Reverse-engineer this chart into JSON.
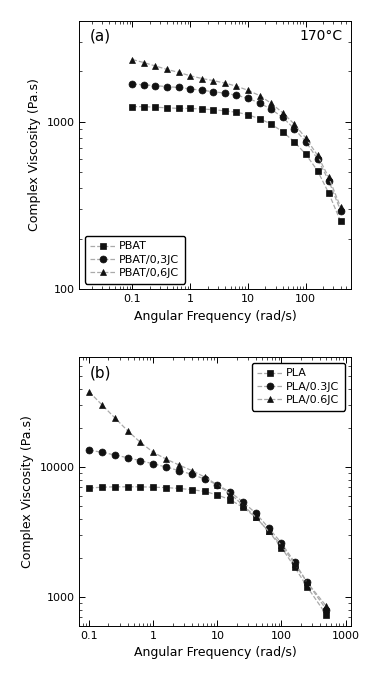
{
  "panel_a": {
    "label": "(a)",
    "annotation": "170°C",
    "xlabel": "Angular Frequency (rad/s)",
    "ylabel": "Complex Viscosity (Pa.s)",
    "xlim": [
      0.012,
      600
    ],
    "ylim": [
      100,
      4000
    ],
    "legend_loc": "lower left",
    "series": [
      {
        "label": "PBAT",
        "marker": "s",
        "x": [
          0.1,
          0.16,
          0.25,
          0.4,
          0.63,
          1.0,
          1.6,
          2.5,
          4.0,
          6.3,
          10,
          16,
          25,
          40,
          63,
          100,
          160,
          250,
          400
        ],
        "y": [
          1230,
          1230,
          1220,
          1210,
          1200,
          1200,
          1190,
          1180,
          1160,
          1140,
          1100,
          1040,
          970,
          870,
          760,
          640,
          510,
          375,
          255
        ]
      },
      {
        "label": "PBAT/0,3JC",
        "marker": "o",
        "x": [
          0.1,
          0.16,
          0.25,
          0.4,
          0.63,
          1.0,
          1.6,
          2.5,
          4.0,
          6.3,
          10,
          16,
          25,
          40,
          63,
          100,
          160,
          250,
          400
        ],
        "y": [
          1680,
          1660,
          1640,
          1620,
          1600,
          1570,
          1540,
          1510,
          1480,
          1440,
          1380,
          1290,
          1190,
          1060,
          910,
          760,
          600,
          445,
          295
        ]
      },
      {
        "label": "PBAT/0,6JC",
        "marker": "^",
        "x": [
          0.1,
          0.16,
          0.25,
          0.4,
          0.63,
          1.0,
          1.6,
          2.5,
          4.0,
          6.3,
          10,
          16,
          25,
          40,
          63,
          100,
          160,
          250,
          400
        ],
        "y": [
          2350,
          2250,
          2150,
          2050,
          1970,
          1880,
          1810,
          1760,
          1700,
          1630,
          1540,
          1430,
          1290,
          1130,
          970,
          800,
          630,
          465,
          310
        ]
      }
    ]
  },
  "panel_b": {
    "label": "(b)",
    "xlabel": "Angular Frequency (rad/s)",
    "ylabel": "Complex Viscosity (Pa.s)",
    "xlim": [
      0.07,
      1200
    ],
    "ylim": [
      600,
      70000
    ],
    "legend_loc": "upper right",
    "series": [
      {
        "label": "PLA",
        "marker": "s",
        "x": [
          0.1,
          0.16,
          0.25,
          0.4,
          0.63,
          1.0,
          1.6,
          2.5,
          4.0,
          6.3,
          10,
          16,
          25,
          40,
          63,
          100,
          160,
          250,
          500
        ],
        "y": [
          6900,
          7000,
          7050,
          7050,
          7050,
          7000,
          6950,
          6850,
          6700,
          6500,
          6100,
          5600,
          4900,
          4100,
          3200,
          2400,
          1700,
          1200,
          730
        ]
      },
      {
        "label": "PLA/0.3JC",
        "marker": "o",
        "x": [
          0.1,
          0.16,
          0.25,
          0.4,
          0.63,
          1.0,
          1.6,
          2.5,
          4.0,
          6.3,
          10,
          16,
          25,
          40,
          63,
          100,
          160,
          250,
          500
        ],
        "y": [
          13500,
          13000,
          12400,
          11800,
          11200,
          10600,
          10000,
          9400,
          8800,
          8100,
          7300,
          6400,
          5400,
          4400,
          3400,
          2600,
          1850,
          1300,
          800
        ]
      },
      {
        "label": "PLA/0.6JC",
        "marker": "^",
        "x": [
          0.1,
          0.16,
          0.25,
          0.4,
          0.63,
          1.0,
          1.6,
          2.5,
          4.0,
          6.3,
          10,
          16,
          25,
          40,
          63,
          100,
          160,
          250,
          500
        ],
        "y": [
          38000,
          30000,
          24000,
          19000,
          15500,
          13000,
          11500,
          10400,
          9400,
          8400,
          7300,
          6200,
          5100,
          4100,
          3200,
          2500,
          1800,
          1300,
          850
        ]
      }
    ]
  },
  "line_color": "#aaaaaa",
  "marker_color": "#111111",
  "marker_size": 5,
  "line_width": 0.9,
  "figure_width": 3.8,
  "figure_height": 6.8
}
